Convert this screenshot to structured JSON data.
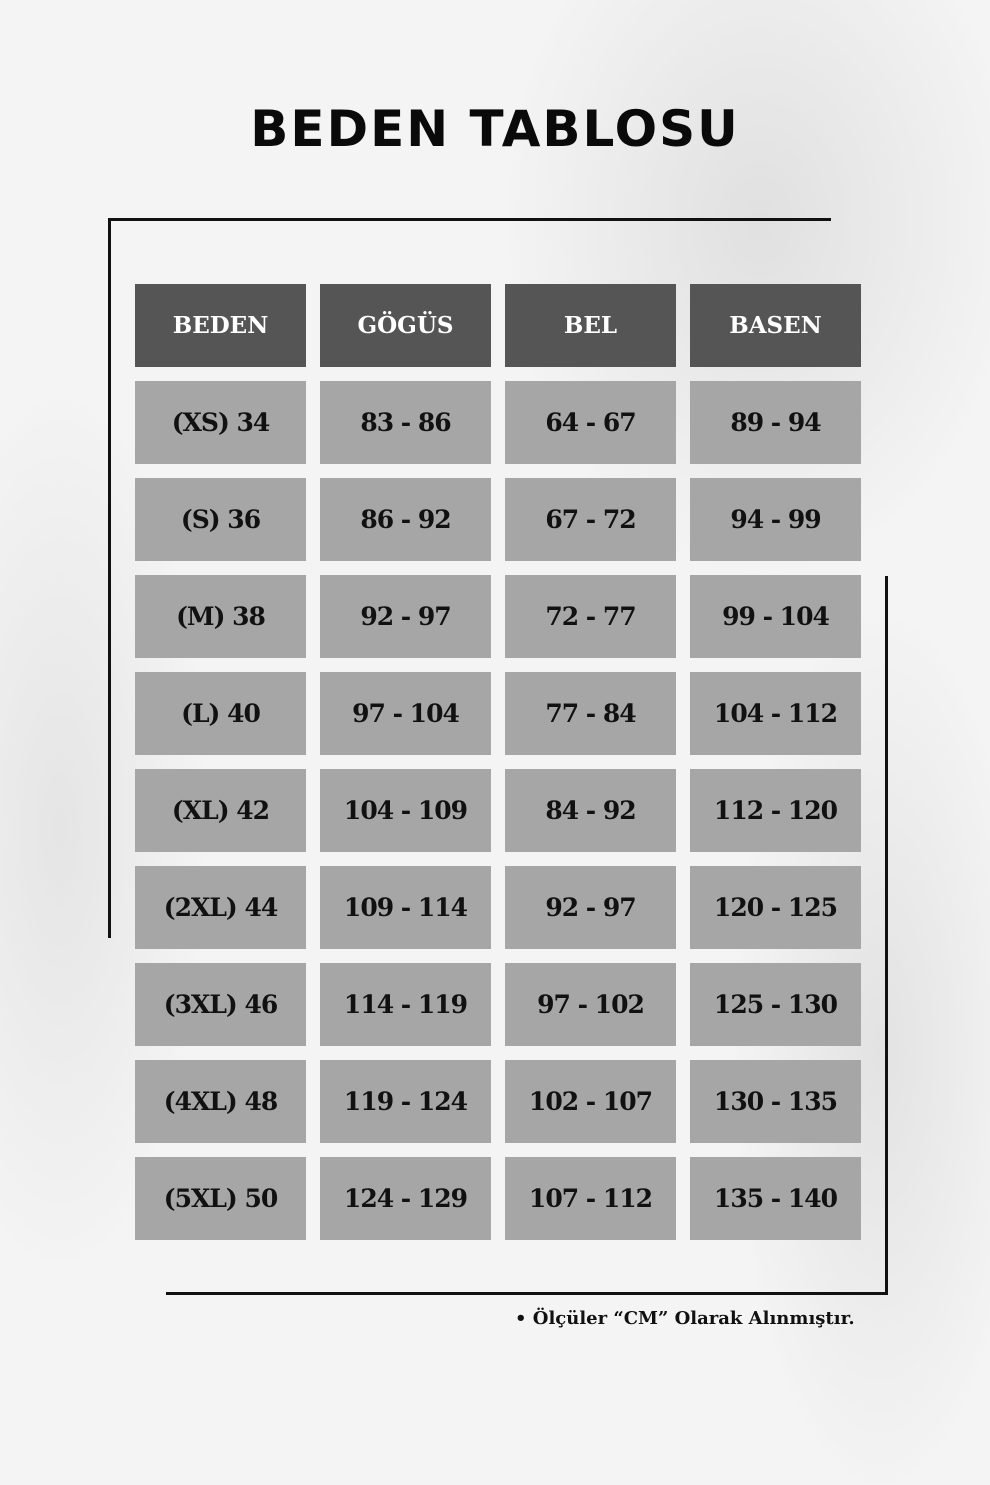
{
  "title": "BEDEN TABLOSU",
  "table": {
    "headers": [
      "BEDEN",
      "GÖGÜS",
      "BEL",
      "BASEN"
    ],
    "rows": [
      [
        "(XS) 34",
        "83 - 86",
        "64 - 67",
        "89 - 94"
      ],
      [
        "(S) 36",
        "86 - 92",
        "67 - 72",
        "94 - 99"
      ],
      [
        "(M) 38",
        "92 - 97",
        "72 - 77",
        "99 - 104"
      ],
      [
        "(L) 40",
        "97 - 104",
        "77 - 84",
        "104 - 112"
      ],
      [
        "(XL) 42",
        "104 - 109",
        "84 - 92",
        "112 - 120"
      ],
      [
        "(2XL) 44",
        "109 - 114",
        "92 - 97",
        "120 - 125"
      ],
      [
        "(3XL) 46",
        "114 - 119",
        "97 - 102",
        "125 - 130"
      ],
      [
        "(4XL) 48",
        "119 - 124",
        "102 - 107",
        "130 - 135"
      ],
      [
        "(5XL) 50",
        "124 - 129",
        "107 - 112",
        "135 - 140"
      ]
    ]
  },
  "note": "• Ölçüler “CM” Olarak Alınmıştır.",
  "colors": {
    "header_bg": "#555555",
    "cell_bg": "#a6a6a6",
    "page_bg": "#f4f4f4"
  }
}
